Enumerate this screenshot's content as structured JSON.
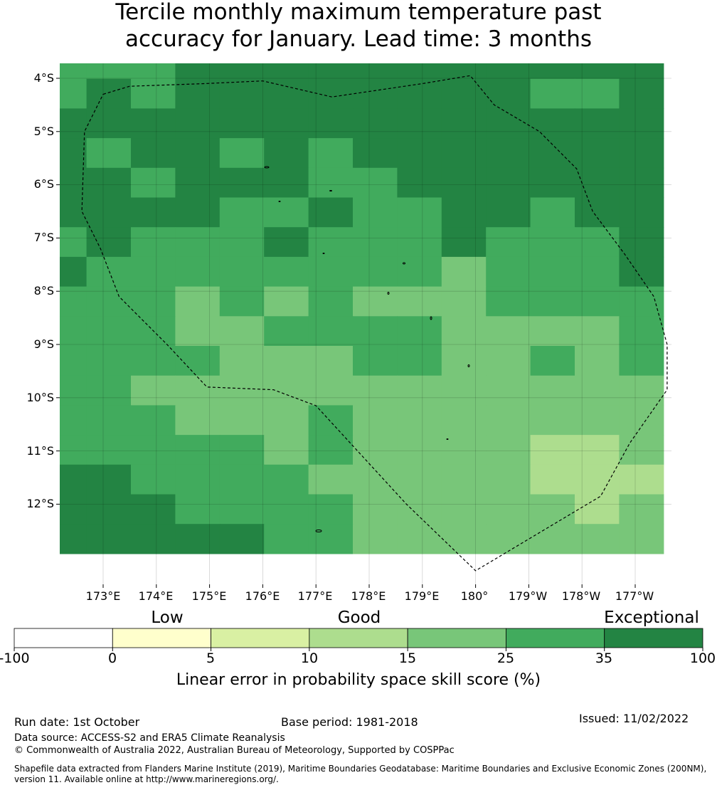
{
  "title_line1": "Tercile monthly maximum temperature past",
  "title_line2": "accuracy for January. Lead time: 3 months",
  "chart_data": {
    "type": "heatmap",
    "extent": {
      "lon_min": 172.2,
      "lon_max": 183.7,
      "lat_min": -13.5,
      "lat_max": -3.75
    },
    "cell_size_deg": 0.8333,
    "first_row_lat_top": -4.0,
    "grid_classes": [
      [
        2,
        3,
        3,
        4,
        4,
        4,
        4,
        4,
        4,
        4,
        4,
        4,
        4,
        4
      ],
      [
        2,
        4,
        2,
        4,
        4,
        4,
        4,
        4,
        4,
        4,
        4,
        2,
        2,
        4
      ],
      [
        4,
        4,
        4,
        4,
        4,
        4,
        4,
        4,
        4,
        4,
        4,
        4,
        4,
        4
      ],
      [
        4,
        2,
        4,
        4,
        2,
        4,
        2,
        4,
        4,
        4,
        4,
        4,
        4,
        4
      ],
      [
        4,
        4,
        2,
        4,
        4,
        4,
        2,
        3,
        4,
        4,
        4,
        4,
        4,
        4
      ],
      [
        4,
        4,
        4,
        4,
        2,
        2,
        4,
        2,
        2,
        4,
        4,
        2,
        4,
        4
      ],
      [
        2,
        4,
        2,
        2,
        2,
        4,
        2,
        2,
        2,
        4,
        2,
        2,
        2,
        4
      ],
      [
        4,
        2,
        2,
        2,
        2,
        2,
        2,
        2,
        2,
        1,
        2,
        2,
        2,
        4
      ],
      [
        2,
        2,
        2,
        1,
        2,
        1,
        2,
        1,
        1,
        1,
        2,
        2,
        2,
        2
      ],
      [
        2,
        2,
        2,
        1,
        1,
        2,
        2,
        2,
        2,
        1,
        1,
        1,
        1,
        2
      ],
      [
        2,
        2,
        2,
        2,
        1,
        1,
        1,
        2,
        2,
        1,
        1,
        2,
        1,
        2
      ],
      [
        2,
        2,
        1,
        1,
        1,
        1,
        1,
        1,
        1,
        1,
        1,
        1,
        1,
        1
      ],
      [
        2,
        2,
        2,
        1,
        1,
        1,
        2,
        1,
        1,
        1,
        1,
        1,
        1,
        1
      ],
      [
        2,
        2,
        2,
        2,
        2,
        1,
        2,
        1,
        1,
        1,
        1,
        0,
        0,
        1
      ],
      [
        4,
        4,
        2,
        2,
        2,
        2,
        1,
        1,
        1,
        1,
        1,
        0,
        0,
        0
      ],
      [
        4,
        4,
        4,
        2,
        2,
        2,
        2,
        1,
        1,
        1,
        1,
        1,
        0,
        1
      ],
      [
        4,
        4,
        4,
        4,
        4,
        2,
        2,
        1,
        1,
        1,
        1,
        1,
        1,
        1
      ]
    ],
    "class_key": [
      "10-15",
      "15-25",
      "25-35",
      "25-35 (alt)",
      "35-100"
    ],
    "eez_boundary": [
      [
        173.0,
        -4.3
      ],
      [
        173.5,
        -4.15
      ],
      [
        174.9,
        -4.1
      ],
      [
        176.0,
        -4.05
      ],
      [
        177.3,
        -4.35
      ],
      [
        179.0,
        -4.1
      ],
      [
        179.9,
        -3.95
      ],
      [
        180.35,
        -4.5
      ],
      [
        181.2,
        -5.0
      ],
      [
        181.9,
        -5.7
      ],
      [
        182.2,
        -6.5
      ],
      [
        182.8,
        -7.3
      ],
      [
        183.35,
        -8.1
      ],
      [
        183.6,
        -9.0
      ],
      [
        183.6,
        -9.85
      ],
      [
        182.9,
        -10.85
      ],
      [
        182.35,
        -11.85
      ],
      [
        180.0,
        -13.25
      ],
      [
        178.7,
        -12.0
      ],
      [
        177.0,
        -10.15
      ],
      [
        176.2,
        -9.85
      ],
      [
        174.95,
        -9.8
      ],
      [
        174.2,
        -9.0
      ],
      [
        173.3,
        -8.1
      ],
      [
        172.95,
        -7.2
      ],
      [
        172.6,
        -6.5
      ],
      [
        172.65,
        -5.0
      ],
      [
        173.0,
        -4.3
      ]
    ],
    "lat_ticks": [
      "4°S",
      "5°S",
      "6°S",
      "7°S",
      "8°S",
      "9°S",
      "10°S",
      "11°S",
      "12°S"
    ],
    "lon_ticks": [
      "173°E",
      "174°E",
      "175°E",
      "176°E",
      "177°E",
      "178°E",
      "179°E",
      "180°",
      "179°W",
      "178°W",
      "177°W"
    ],
    "colorbar": {
      "ticks": [
        "-100",
        "0",
        "5",
        "10",
        "15",
        "25",
        "35",
        "100"
      ],
      "colors": [
        "#ffffff",
        "#ffffcc",
        "#d9f0a3",
        "#addd8e",
        "#78c679",
        "#41ab5d",
        "#238443"
      ],
      "category_labels": [
        "Low",
        "Good",
        "Exceptional"
      ],
      "title": "Linear error in probability space skill score (%)"
    },
    "map_colors": [
      "#addd8e",
      "#78c679",
      "#41ab5d",
      "#41ab5d",
      "#238443"
    ]
  },
  "footer": {
    "run_date": "Run date: 1st October",
    "base_period": "Base period: 1981-2018",
    "issued": "Issued: 11/02/2022",
    "data_source": "Data source: ACCESS-S2 and ERA5 Climate Reanalysis",
    "copyright": "© Commonwealth of Australia 2022, Australian Bureau of Meteorology, Supported by COSPPac",
    "shapefile_line1": "Shapefile data extracted from Flanders Marine Institute (2019), Maritime Boundaries Geodatabase: Maritime Boundaries and Exclusive Economic Zones (200NM),",
    "shapefile_line2": "version 11. Available online at http://www.marineregions.org/."
  }
}
